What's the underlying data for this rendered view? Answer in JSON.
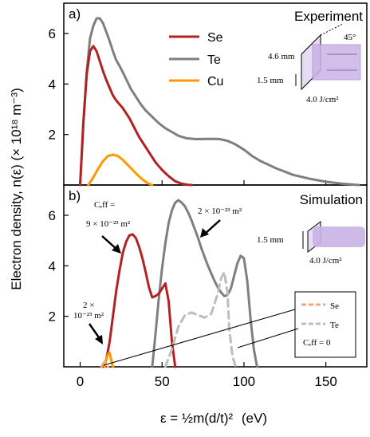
{
  "ylabel": "Electron density, n(ε) (× 10¹⁸ m⁻³)",
  "xlabel_main": "ε = ½m(d/t)²",
  "xlabel_unit": "(eV)",
  "colors": {
    "Se": "#b22222",
    "Te": "#7f7f7f",
    "Cu": "#ff9900",
    "Se_dash": "#f4a582",
    "Te_dash": "#bdbdbd",
    "beam": "#c9b3e6"
  },
  "panel_a": {
    "letter": "a)",
    "title": "Experiment",
    "legend": [
      "Se",
      "Te",
      "Cu"
    ],
    "schematic": {
      "angle": "45°",
      "width": "4.6 mm",
      "height": "1.5 mm",
      "fluence": "4.0 J/cm²"
    }
  },
  "panel_b": {
    "letter": "b)",
    "title": "Simulation",
    "ceff_label": "Cₑff =",
    "ann_se": "9 × 10⁻²³ m²",
    "ann_te": "2 × 10⁻²³ m²",
    "ann_cu_line1": "2 ×",
    "ann_cu_line2": "10⁻²³ m²",
    "legend": [
      "Se",
      "Te"
    ],
    "legend_note": "Cₑff = 0",
    "schematic": {
      "height": "1.5 mm",
      "fluence": "4.0 J/cm²"
    }
  },
  "chart_data": [
    {
      "type": "line",
      "panel": "a",
      "title": "Experiment",
      "xlim": [
        -10,
        175
      ],
      "ylim": [
        0,
        7.2
      ],
      "xticks": [
        0,
        50,
        100,
        150
      ],
      "yticks": [
        2,
        4,
        6
      ],
      "series": [
        {
          "name": "Te",
          "style": "solid",
          "x": [
            0,
            2,
            4,
            6,
            8,
            10,
            12,
            14,
            16,
            18,
            20,
            22,
            25,
            28,
            31,
            34,
            37,
            40,
            44,
            48,
            52,
            56,
            60,
            65,
            70,
            75,
            80,
            85,
            90,
            95,
            100,
            105,
            110,
            120,
            130,
            140,
            150,
            160,
            170
          ],
          "y": [
            0,
            2.5,
            4.5,
            5.8,
            6.3,
            6.6,
            6.6,
            6.4,
            6.05,
            5.7,
            5.3,
            4.95,
            4.6,
            4.2,
            3.8,
            3.5,
            3.2,
            2.95,
            2.7,
            2.45,
            2.25,
            2.1,
            1.95,
            1.85,
            1.82,
            1.82,
            1.83,
            1.82,
            1.75,
            1.6,
            1.4,
            1.15,
            0.95,
            0.65,
            0.4,
            0.25,
            0.13,
            0.05,
            0.0
          ]
        },
        {
          "name": "Se",
          "style": "solid",
          "x": [
            0,
            2,
            4,
            6,
            8,
            10,
            12,
            14,
            16,
            18,
            20,
            22,
            24,
            26,
            28,
            30,
            32,
            34,
            36,
            38,
            40,
            42,
            44,
            46,
            48,
            50,
            52,
            54,
            56,
            58,
            60,
            62,
            64,
            66,
            68
          ],
          "y": [
            0,
            2.5,
            4.4,
            5.3,
            5.5,
            5.3,
            4.9,
            4.5,
            4.15,
            3.85,
            3.55,
            3.35,
            3.2,
            3.05,
            2.85,
            2.65,
            2.4,
            2.15,
            1.9,
            1.7,
            1.5,
            1.3,
            1.1,
            0.9,
            0.75,
            0.6,
            0.47,
            0.35,
            0.25,
            0.15,
            0.1,
            0.05,
            0.03,
            0.01,
            0
          ]
        },
        {
          "name": "Cu",
          "style": "solid",
          "x": [
            5,
            8,
            11,
            14,
            17,
            20,
            23,
            26,
            29,
            32,
            35,
            38,
            41,
            44
          ],
          "y": [
            0,
            0.3,
            0.65,
            0.95,
            1.15,
            1.2,
            1.15,
            1.0,
            0.8,
            0.6,
            0.4,
            0.22,
            0.08,
            0
          ]
        }
      ]
    },
    {
      "type": "line",
      "panel": "b",
      "title": "Simulation",
      "xlim": [
        -10,
        175
      ],
      "ylim": [
        0,
        7.2
      ],
      "xticks": [
        0,
        50,
        100,
        150
      ],
      "yticks": [
        2,
        4,
        6
      ],
      "series": [
        {
          "name": "Te",
          "style": "solid",
          "x": [
            44,
            46,
            48,
            50,
            52,
            54,
            56,
            58,
            60,
            62,
            64,
            66,
            68,
            70,
            72,
            74,
            76,
            78,
            80,
            82,
            84,
            86,
            88,
            90,
            92,
            94,
            96,
            98,
            100,
            102,
            104,
            106,
            108
          ],
          "y": [
            0,
            1.3,
            2.7,
            3.9,
            4.9,
            5.7,
            6.2,
            6.5,
            6.6,
            6.5,
            6.35,
            6.1,
            5.8,
            5.45,
            5.1,
            4.7,
            4.35,
            4.0,
            3.7,
            3.4,
            3.15,
            2.95,
            2.8,
            2.85,
            3.1,
            3.6,
            4.1,
            4.4,
            4.3,
            3.4,
            1.9,
            0.7,
            0
          ]
        },
        {
          "name": "Se",
          "style": "solid",
          "x": [
            14,
            16,
            18,
            20,
            22,
            24,
            26,
            28,
            30,
            32,
            34,
            36,
            38,
            40,
            42,
            44,
            46,
            48,
            50,
            52,
            54,
            56,
            58
          ],
          "y": [
            0,
            0.3,
            1.0,
            2.0,
            3.0,
            3.8,
            4.5,
            4.95,
            5.2,
            5.25,
            5.1,
            4.75,
            4.3,
            3.75,
            3.15,
            2.75,
            2.8,
            2.9,
            3.1,
            3.3,
            2.6,
            1.0,
            0
          ]
        },
        {
          "name": "Cu",
          "style": "solid",
          "x": [
            15,
            16,
            17,
            18,
            19,
            20
          ],
          "y": [
            0,
            0.3,
            0.5,
            0.55,
            0.25,
            0
          ]
        },
        {
          "name": "Te (Ceff = 0)",
          "style": "dashed",
          "x": [
            52,
            56,
            60,
            64,
            68,
            72,
            76,
            80,
            84,
            86,
            88,
            90,
            91,
            93,
            95
          ],
          "y": [
            0,
            0.7,
            1.6,
            2.05,
            2.15,
            2.05,
            1.95,
            2.1,
            2.9,
            3.5,
            3.75,
            2.9,
            1.5,
            0.4,
            0
          ]
        },
        {
          "name": "Se (Ceff = 0)",
          "style": "dashed",
          "x": [
            13,
            14,
            15,
            16,
            17
          ],
          "y": [
            0,
            0.12,
            0.2,
            0.1,
            0
          ]
        }
      ]
    }
  ]
}
